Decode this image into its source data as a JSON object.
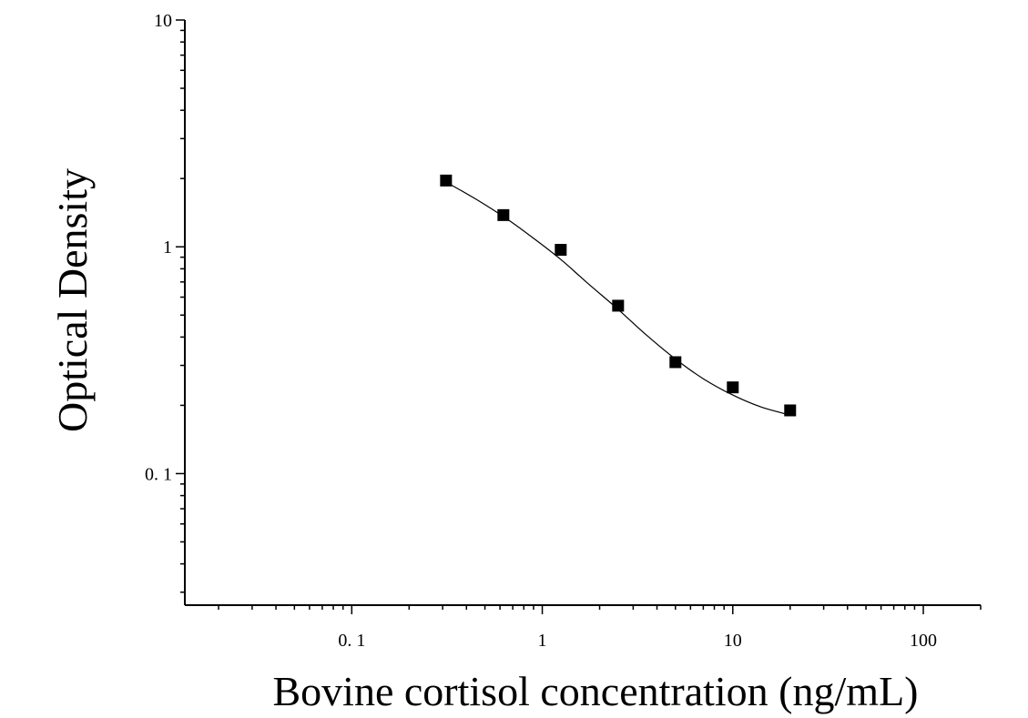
{
  "chart_data": {
    "type": "scatter",
    "title": "",
    "xlabel": "Bovine cortisol concentration (ng/mL)",
    "ylabel": "Optical Density",
    "x_scale": "log",
    "y_scale": "log",
    "xlim": [
      0.0133,
      200
    ],
    "ylim": [
      0.0263,
      10
    ],
    "x_ticks": [
      {
        "value": 0.1,
        "label": "0. 1"
      },
      {
        "value": 1,
        "label": "1"
      },
      {
        "value": 10,
        "label": "10"
      },
      {
        "value": 100,
        "label": "100"
      }
    ],
    "y_ticks": [
      {
        "value": 0.1,
        "label": "0. 1"
      },
      {
        "value": 1,
        "label": "1"
      },
      {
        "value": 10,
        "label": "10"
      }
    ],
    "grid": false,
    "legend": "none",
    "marker_color": "#000000",
    "curve_color": "#000000",
    "points": [
      {
        "x": 0.3125,
        "y": 1.96
      },
      {
        "x": 0.625,
        "y": 1.38
      },
      {
        "x": 1.25,
        "y": 0.97
      },
      {
        "x": 2.5,
        "y": 0.55
      },
      {
        "x": 5,
        "y": 0.31
      },
      {
        "x": 10,
        "y": 0.24
      },
      {
        "x": 20,
        "y": 0.19
      }
    ],
    "fit_curve": [
      {
        "x": 0.3125,
        "y": 1.93
      },
      {
        "x": 0.45,
        "y": 1.62
      },
      {
        "x": 0.65,
        "y": 1.33
      },
      {
        "x": 0.9,
        "y": 1.09
      },
      {
        "x": 1.25,
        "y": 0.88
      },
      {
        "x": 1.7,
        "y": 0.7
      },
      {
        "x": 2.5,
        "y": 0.53
      },
      {
        "x": 3.5,
        "y": 0.41
      },
      {
        "x": 5,
        "y": 0.32
      },
      {
        "x": 7,
        "y": 0.262
      },
      {
        "x": 10,
        "y": 0.222
      },
      {
        "x": 14,
        "y": 0.197
      },
      {
        "x": 20,
        "y": 0.181
      }
    ]
  }
}
